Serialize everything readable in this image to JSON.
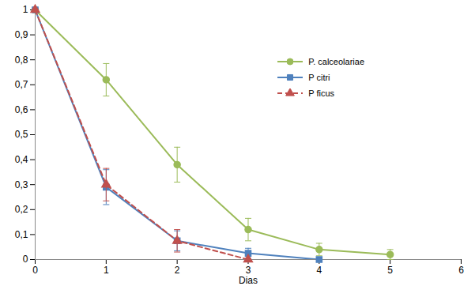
{
  "chart_data": {
    "type": "line",
    "x_label": "Dias",
    "x": [
      0,
      1,
      2,
      3,
      4,
      5
    ],
    "xlim": [
      0,
      6
    ],
    "xticks": [
      0,
      1,
      2,
      3,
      4,
      5,
      6
    ],
    "ylim": [
      0,
      1
    ],
    "yticks": [
      0,
      {
        "value": 0.1,
        "label": "0,1"
      },
      {
        "value": 0.2,
        "label": "0,2"
      },
      {
        "value": 0.3,
        "label": "0,3"
      },
      {
        "value": 0.4,
        "label": "0,4"
      },
      {
        "value": 0.5,
        "label": "0,5"
      },
      {
        "value": 0.6,
        "label": "0,6"
      },
      {
        "value": 0.7,
        "label": "0,7"
      },
      {
        "value": 0.8,
        "label": "0,8"
      },
      {
        "value": 0.9,
        "label": "0,9"
      },
      1
    ],
    "grid": false,
    "legend": "upper right",
    "series": [
      {
        "name": "P. calceolariae",
        "color": "#9bbb59",
        "marker": "circle",
        "line_style": "solid",
        "values": [
          1,
          0.72,
          0.38,
          0.12,
          0.04,
          0.02
        ],
        "errors": [
          0,
          0.065,
          0.07,
          0.045,
          0.025,
          0.02
        ]
      },
      {
        "name": "P citri",
        "color": "#4f81bd",
        "marker": "square",
        "line_style": "solid",
        "values": [
          1,
          0.29,
          0.075,
          0.025,
          0,
          null
        ],
        "errors": [
          0,
          0.07,
          0.04,
          0.02,
          0,
          null
        ]
      },
      {
        "name": "P ficus",
        "color": "#c0504d",
        "marker": "triangle",
        "line_style": "dashed",
        "values": [
          1,
          0.3,
          0.075,
          0,
          null,
          null
        ],
        "errors": [
          0,
          0.065,
          0.045,
          0,
          null,
          null
        ]
      }
    ]
  }
}
